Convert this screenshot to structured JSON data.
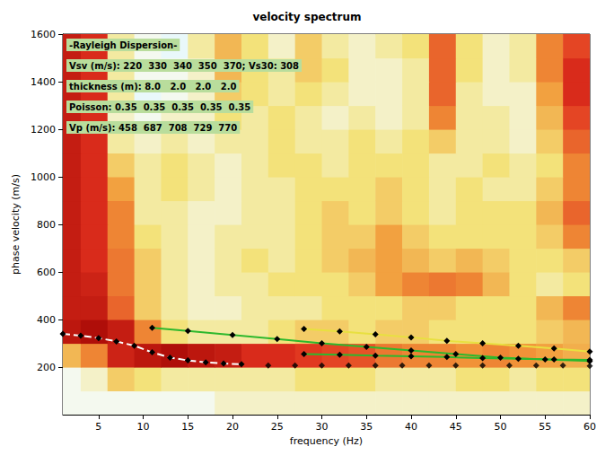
{
  "chart_data": {
    "type": "line",
    "title": "velocity spectrum",
    "x_label": "frequency (Hz)",
    "y_label": "phase velocity (m/s)",
    "xlim": [
      1,
      60
    ],
    "xticks": [
      5,
      10,
      15,
      20,
      25,
      30,
      35,
      40,
      45,
      50,
      55,
      60
    ],
    "ylim": [
      0,
      1600
    ],
    "yticks": [
      200,
      400,
      600,
      800,
      1000,
      1200,
      1400,
      1600
    ],
    "grid": false,
    "annotations": [
      "-Rayleigh Dispersion-",
      "Vsv (m/s): 220  330  340  350  370; Vs30: 308",
      "thickness (m): 8.0   2.0   2.0   2.0",
      "Poisson: 0.35  0.35  0.35  0.35  0.35",
      "Vp (m/s): 458  687  708  729  770"
    ],
    "heatmap": {
      "x_edges": [
        0,
        3,
        6,
        9,
        12,
        15,
        18,
        21,
        24,
        27,
        30,
        33,
        36,
        39,
        42,
        45,
        48,
        51,
        54,
        57,
        60
      ],
      "y_edges": [
        0,
        100,
        200,
        300,
        400,
        500,
        600,
        700,
        800,
        900,
        1000,
        1100,
        1200,
        1300,
        1400,
        1500,
        1600
      ],
      "range": [
        0,
        1
      ],
      "values": [
        [
          0.35,
          0.35,
          0.35,
          0.35,
          0.35,
          0.35,
          0.4,
          0.4,
          0.4,
          0.4,
          0.4,
          0.4,
          0.4,
          0.4,
          0.4,
          0.4,
          0.4,
          0.4,
          0.4,
          0.4
        ],
        [
          0.35,
          0.4,
          0.55,
          0.5,
          0.45,
          0.45,
          0.45,
          0.45,
          0.45,
          0.5,
          0.5,
          0.5,
          0.45,
          0.45,
          0.45,
          0.5,
          0.5,
          0.45,
          0.5,
          0.5
        ],
        [
          0.6,
          0.7,
          0.88,
          0.92,
          0.95,
          0.92,
          0.9,
          0.85,
          0.85,
          0.82,
          0.8,
          0.78,
          0.72,
          0.7,
          0.7,
          0.68,
          0.7,
          0.68,
          0.65,
          0.62
        ],
        [
          0.92,
          0.95,
          0.9,
          0.7,
          0.5,
          0.45,
          0.45,
          0.45,
          0.5,
          0.55,
          0.55,
          0.5,
          0.55,
          0.55,
          0.5,
          0.5,
          0.5,
          0.5,
          0.55,
          0.6
        ],
        [
          0.9,
          0.9,
          0.75,
          0.55,
          0.45,
          0.4,
          0.4,
          0.45,
          0.45,
          0.45,
          0.5,
          0.5,
          0.5,
          0.55,
          0.55,
          0.5,
          0.5,
          0.5,
          0.6,
          0.7
        ],
        [
          0.9,
          0.88,
          0.72,
          0.55,
          0.45,
          0.4,
          0.45,
          0.45,
          0.5,
          0.5,
          0.5,
          0.55,
          0.65,
          0.7,
          0.72,
          0.7,
          0.6,
          0.5,
          0.45,
          0.5
        ],
        [
          0.9,
          0.85,
          0.72,
          0.55,
          0.45,
          0.4,
          0.45,
          0.5,
          0.45,
          0.5,
          0.55,
          0.6,
          0.65,
          0.6,
          0.55,
          0.6,
          0.55,
          0.5,
          0.5,
          0.55
        ],
        [
          0.9,
          0.85,
          0.7,
          0.5,
          0.45,
          0.4,
          0.45,
          0.45,
          0.45,
          0.5,
          0.55,
          0.55,
          0.65,
          0.55,
          0.5,
          0.5,
          0.5,
          0.5,
          0.55,
          0.7
        ],
        [
          0.9,
          0.85,
          0.7,
          0.45,
          0.45,
          0.4,
          0.4,
          0.45,
          0.45,
          0.5,
          0.55,
          0.5,
          0.55,
          0.5,
          0.45,
          0.5,
          0.5,
          0.5,
          0.6,
          0.75
        ],
        [
          0.9,
          0.85,
          0.65,
          0.45,
          0.5,
          0.45,
          0.4,
          0.45,
          0.45,
          0.5,
          0.5,
          0.5,
          0.55,
          0.5,
          0.45,
          0.5,
          0.45,
          0.45,
          0.55,
          0.7
        ],
        [
          0.9,
          0.85,
          0.55,
          0.45,
          0.5,
          0.45,
          0.4,
          0.45,
          0.5,
          0.5,
          0.45,
          0.5,
          0.5,
          0.5,
          0.45,
          0.45,
          0.5,
          0.45,
          0.5,
          0.7
        ],
        [
          0.9,
          0.85,
          0.45,
          0.4,
          0.45,
          0.4,
          0.45,
          0.45,
          0.5,
          0.45,
          0.45,
          0.5,
          0.45,
          0.5,
          0.55,
          0.45,
          0.45,
          0.4,
          0.55,
          0.75
        ],
        [
          0.9,
          0.85,
          0.4,
          0.35,
          0.4,
          0.4,
          0.5,
          0.45,
          0.5,
          0.45,
          0.4,
          0.45,
          0.4,
          0.45,
          0.7,
          0.45,
          0.45,
          0.4,
          0.6,
          0.8
        ],
        [
          0.9,
          0.85,
          0.45,
          0.3,
          0.35,
          0.4,
          0.55,
          0.5,
          0.45,
          0.5,
          0.45,
          0.4,
          0.4,
          0.45,
          0.75,
          0.45,
          0.4,
          0.4,
          0.65,
          0.85
        ],
        [
          0.9,
          0.85,
          0.45,
          0.35,
          0.35,
          0.4,
          0.6,
          0.5,
          0.45,
          0.55,
          0.5,
          0.4,
          0.4,
          0.45,
          0.75,
          0.5,
          0.4,
          0.45,
          0.7,
          0.85
        ],
        [
          0.9,
          0.85,
          0.45,
          0.35,
          0.3,
          0.45,
          0.6,
          0.5,
          0.4,
          0.55,
          0.45,
          0.4,
          0.45,
          0.5,
          0.75,
          0.5,
          0.4,
          0.45,
          0.7,
          0.8
        ]
      ]
    },
    "series": [
      {
        "type": "line",
        "color": "#ffffff",
        "line_style": "dashed",
        "marker": "diamond",
        "x": [
          1,
          3,
          5,
          7,
          9,
          11,
          13,
          15,
          17,
          19,
          21
        ],
        "values": [
          340,
          332,
          322,
          308,
          290,
          262,
          240,
          228,
          220,
          215,
          212
        ]
      },
      {
        "type": "scatter",
        "color": "#000000",
        "marker": "diamond",
        "x": [
          24,
          27,
          30,
          33,
          36,
          39,
          42,
          45,
          48,
          51,
          54,
          57,
          60
        ],
        "values": [
          207,
          207,
          207,
          207,
          207,
          207,
          207,
          207,
          207,
          207,
          207,
          207,
          205
        ]
      },
      {
        "type": "line",
        "color": "#2db82d",
        "line_style": "solid",
        "marker": "diamond",
        "x": [
          11,
          15,
          20,
          25,
          30,
          35,
          40,
          45,
          50,
          55,
          60
        ],
        "values": [
          365,
          352,
          335,
          318,
          300,
          285,
          270,
          255,
          240,
          232,
          225
        ]
      },
      {
        "type": "line",
        "color": "#e8e040",
        "line_style": "solid",
        "marker": "diamond",
        "x": [
          28,
          32,
          36,
          40,
          44,
          48,
          52,
          56,
          60
        ],
        "values": [
          360,
          350,
          338,
          325,
          310,
          300,
          290,
          278,
          265
        ]
      },
      {
        "type": "line",
        "color": "#2db82d",
        "line_style": "solid",
        "marker": "diamond",
        "x": [
          28,
          32,
          36,
          40,
          44,
          48,
          52,
          56,
          60
        ],
        "values": [
          255,
          252,
          248,
          245,
          242,
          238,
          235,
          232,
          230
        ]
      }
    ]
  }
}
